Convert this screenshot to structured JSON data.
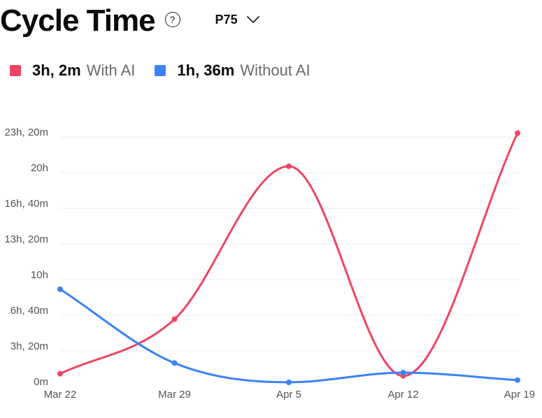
{
  "header": {
    "title": "Cycle Time",
    "help_glyph": "?",
    "selector_value": "P75"
  },
  "legend": [
    {
      "value": "3h, 2m",
      "label": "With AI",
      "color": "#ef4565"
    },
    {
      "value": "1h, 36m",
      "label": "Without AI",
      "color": "#3b82f6"
    }
  ],
  "colors": {
    "with_ai": "#ef4565",
    "without_ai": "#3b82f6",
    "grid": "#ececec",
    "tick": "#555555"
  },
  "icons": {
    "help": "question-circle-icon",
    "selector": "chevron-down-icon"
  },
  "chart_data": {
    "type": "line",
    "categories": [
      "Mar 22",
      "Mar 29",
      "Apr 5",
      "Apr 12",
      "Apr 19"
    ],
    "y_unit": "hours",
    "ylim": [
      0,
      23.333
    ],
    "yticks": [
      {
        "value": 0,
        "label": "0m"
      },
      {
        "value": 3.333,
        "label": "3h, 20m"
      },
      {
        "value": 6.667,
        "label": "6h, 40m"
      },
      {
        "value": 10,
        "label": "10h"
      },
      {
        "value": 13.333,
        "label": "13h, 20m"
      },
      {
        "value": 16.667,
        "label": "16h, 40m"
      },
      {
        "value": 20,
        "label": "20h"
      },
      {
        "value": 23.333,
        "label": "23h, 20m"
      }
    ],
    "grid": true,
    "series": [
      {
        "name": "With AI",
        "color": "#ef4565",
        "values": [
          1.2,
          6.3,
          20.6,
          1.0,
          23.7
        ]
      },
      {
        "name": "Without AI",
        "color": "#3b82f6",
        "values": [
          9.1,
          2.2,
          0.4,
          1.3,
          0.6
        ]
      }
    ]
  }
}
